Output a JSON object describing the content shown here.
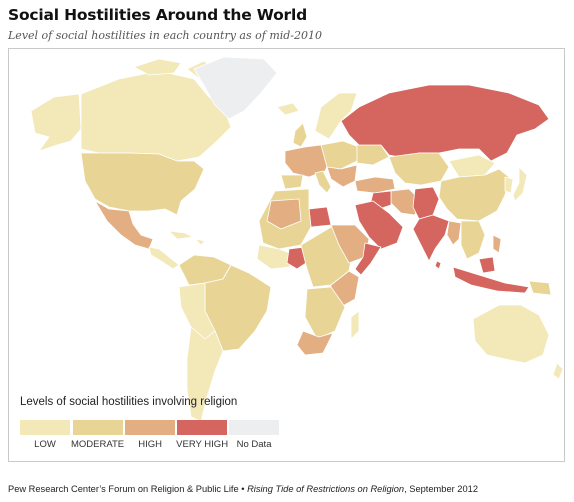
{
  "header": {
    "title": "Social Hostilities Around the World",
    "subtitle": "Level of social hostilities in each country as of mid-2010"
  },
  "colors": {
    "low": "#f2e8b8",
    "moderate": "#e8d595",
    "high": "#e2ae82",
    "very_high": "#d4665f",
    "no_data": "#edeef0",
    "border": "#ffffff"
  },
  "legend": {
    "title": "Levels of social hostilities involving religion",
    "items": [
      {
        "label": "LOW",
        "color": "#f2e8b8"
      },
      {
        "label": "MODERATE",
        "color": "#e8d595"
      },
      {
        "label": "HIGH",
        "color": "#e2ae82"
      },
      {
        "label": "VERY HIGH",
        "color": "#d4665f"
      },
      {
        "label": "No Data",
        "color": "#edeef0"
      }
    ]
  },
  "source": {
    "prefix": "Pew Research Center’s Forum on Religion & Public Life • ",
    "report": "Rising Tide of Restrictions on Religion",
    "suffix": ", September 2012"
  }
}
